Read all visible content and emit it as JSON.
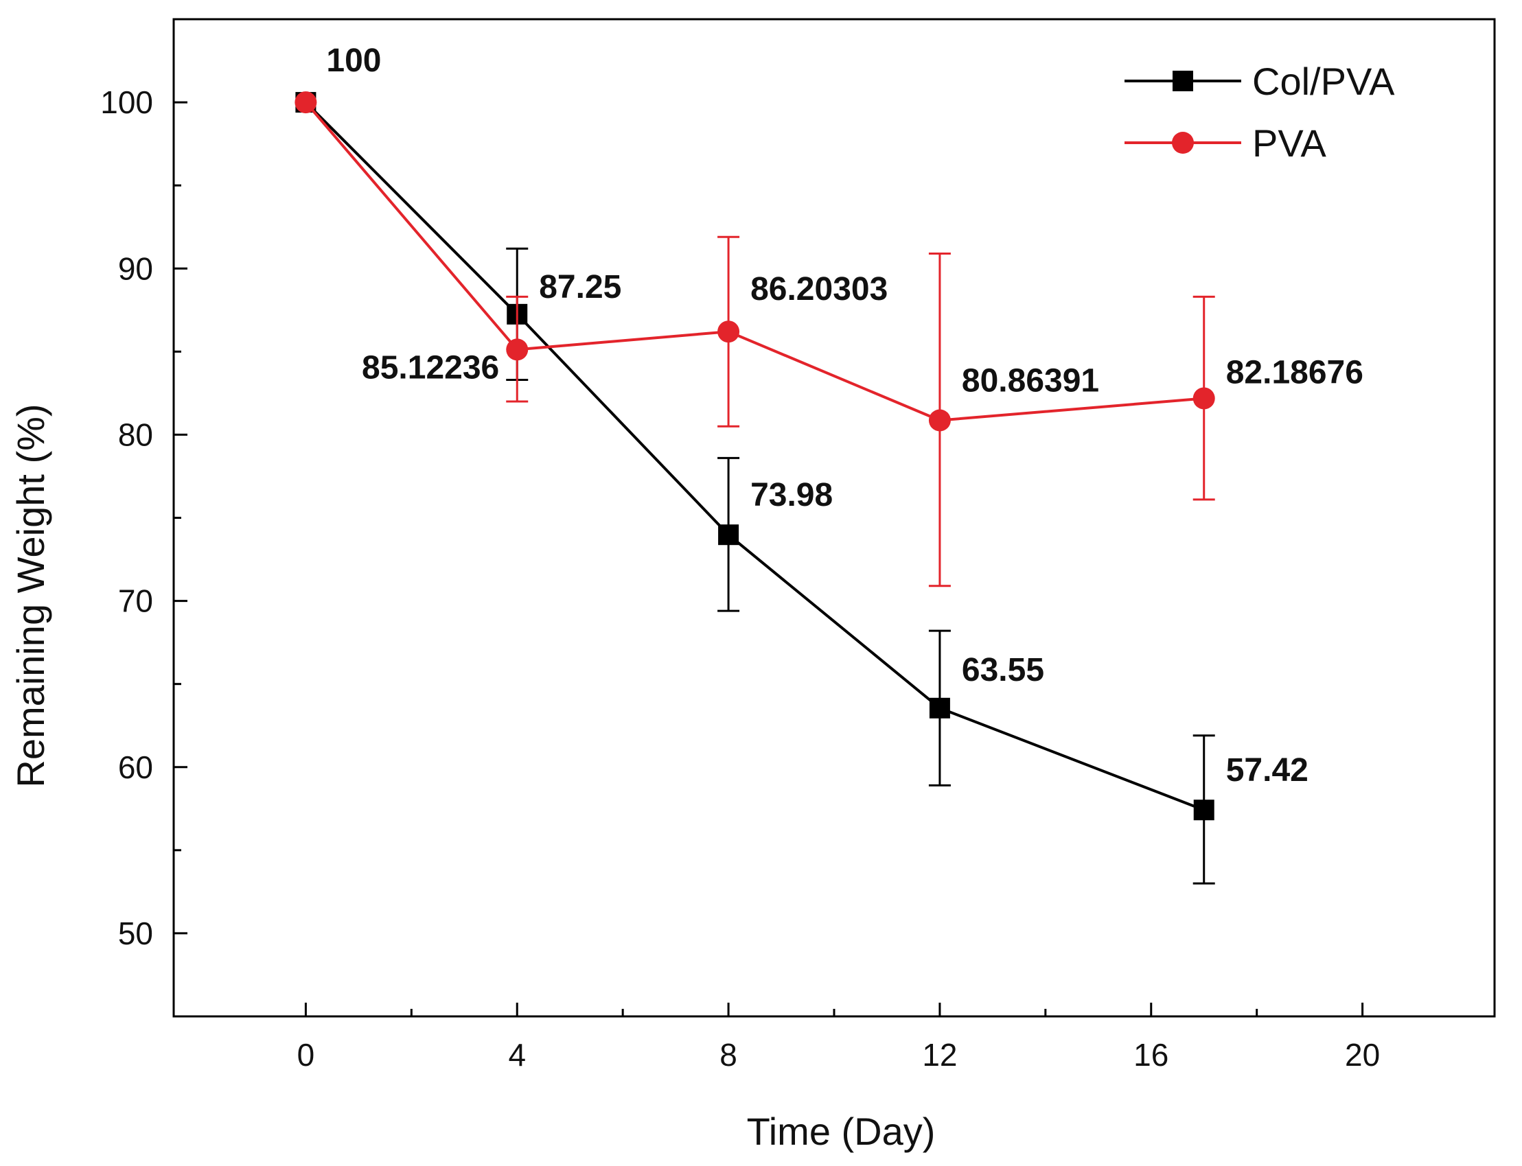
{
  "chart_data": {
    "type": "line",
    "title": "",
    "xlabel": "Time (Day)",
    "ylabel": "Remaining Weight (%)",
    "xlim": [
      -2.5,
      22.5
    ],
    "ylim": [
      45,
      105
    ],
    "x_major_ticks": [
      0,
      4,
      8,
      12,
      16,
      20
    ],
    "x_tick_labels": [
      "0",
      "4",
      "8",
      "12",
      "16",
      "20"
    ],
    "x_minor_ticks": [
      2,
      6,
      10,
      14,
      18
    ],
    "y_major_ticks": [
      50,
      60,
      70,
      80,
      90,
      100
    ],
    "y_tick_labels": [
      "50",
      "60",
      "70",
      "80",
      "90",
      "100"
    ],
    "y_minor_ticks": [
      55,
      65,
      75,
      85,
      95
    ],
    "grid": false,
    "legend_position": "top-right",
    "series": [
      {
        "name": "Col/PVA",
        "color": "#000000",
        "marker": "square",
        "x": [
          0,
          4,
          8,
          12,
          17
        ],
        "values": [
          100,
          87.25,
          73.98,
          63.55,
          57.42
        ],
        "error_low": [
          100,
          83.3,
          69.4,
          58.9,
          53.0
        ],
        "error_high": [
          100,
          91.2,
          78.6,
          68.2,
          61.9
        ],
        "labels": [
          "100",
          "87.25",
          "73.98",
          "63.55",
          "57.42"
        ]
      },
      {
        "name": "PVA",
        "color": "#e3242b",
        "marker": "circle",
        "x": [
          0,
          4,
          8,
          12,
          17
        ],
        "values": [
          100,
          85.12236,
          86.20303,
          80.86391,
          82.18676
        ],
        "error_low": [
          100,
          82.0,
          80.5,
          70.9,
          76.1
        ],
        "error_high": [
          100,
          88.3,
          91.9,
          90.9,
          88.3
        ],
        "labels": [
          "",
          "85.12236",
          "86.20303",
          "80.86391",
          "82.18676"
        ]
      }
    ]
  }
}
